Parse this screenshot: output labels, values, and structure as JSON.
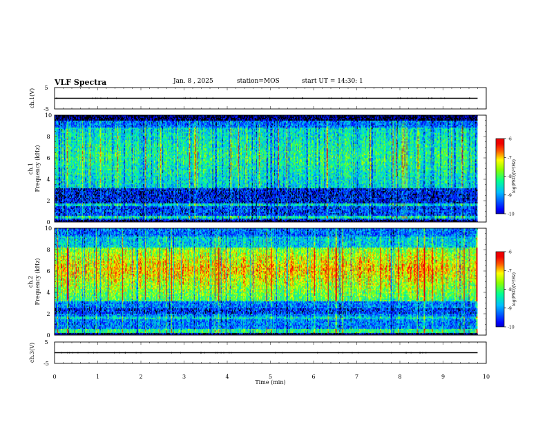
{
  "header": {
    "title": "VLF Spectra",
    "date": "Jan. 8 , 2025",
    "station": "station=MOS",
    "start": "start UT =  14:30: 1"
  },
  "chart_data": [
    {
      "type": "line",
      "panel": "ch1-waveform",
      "ylabel": "ch.1(V)",
      "ylim": [
        -5,
        5
      ],
      "yticks": [
        "5",
        "-5"
      ],
      "x": [
        0,
        9.8
      ],
      "y": [
        0,
        0
      ],
      "xlim": [
        0,
        10
      ]
    },
    {
      "type": "heatmap",
      "panel": "ch1-spectrogram",
      "ylabel": "ch.1 Frequency (kHz)",
      "ylim": [
        0,
        10
      ],
      "yticks": [
        0,
        2,
        4,
        6,
        8,
        10
      ],
      "xlim": [
        0,
        10
      ],
      "data_extent_min": 9.8,
      "colorbar": {
        "label": "log(PSD)(V²/Hz)",
        "range": [
          -10,
          -6
        ],
        "ticks": [
          "-6",
          "-7",
          "-8",
          "-9",
          "-10"
        ]
      },
      "profile": "ch1"
    },
    {
      "type": "heatmap",
      "panel": "ch2-spectrogram",
      "ylabel": "ch.2 Frequency (kHz)",
      "ylim": [
        0,
        10
      ],
      "yticks": [
        0,
        2,
        4,
        6,
        8,
        10
      ],
      "xlim": [
        0,
        10
      ],
      "data_extent_min": 9.8,
      "colorbar": {
        "label": "log(PSD)(V²/Hz)",
        "range": [
          -10,
          -6
        ],
        "ticks": [
          "-6",
          "-7",
          "-8",
          "-9",
          "-10"
        ]
      },
      "profile": "ch2"
    },
    {
      "type": "line",
      "panel": "ch3-waveform",
      "ylabel": "ch.3(V)",
      "ylim": [
        -5,
        5
      ],
      "yticks": [
        "5",
        "-5"
      ],
      "x": [
        0,
        9.8
      ],
      "y": [
        0,
        0
      ],
      "xlim": [
        0,
        10
      ]
    }
  ],
  "xaxis": {
    "label": "Time (min)",
    "ticks": [
      "0",
      "1",
      "2",
      "3",
      "4",
      "5",
      "6",
      "7",
      "8",
      "9",
      "10"
    ]
  }
}
